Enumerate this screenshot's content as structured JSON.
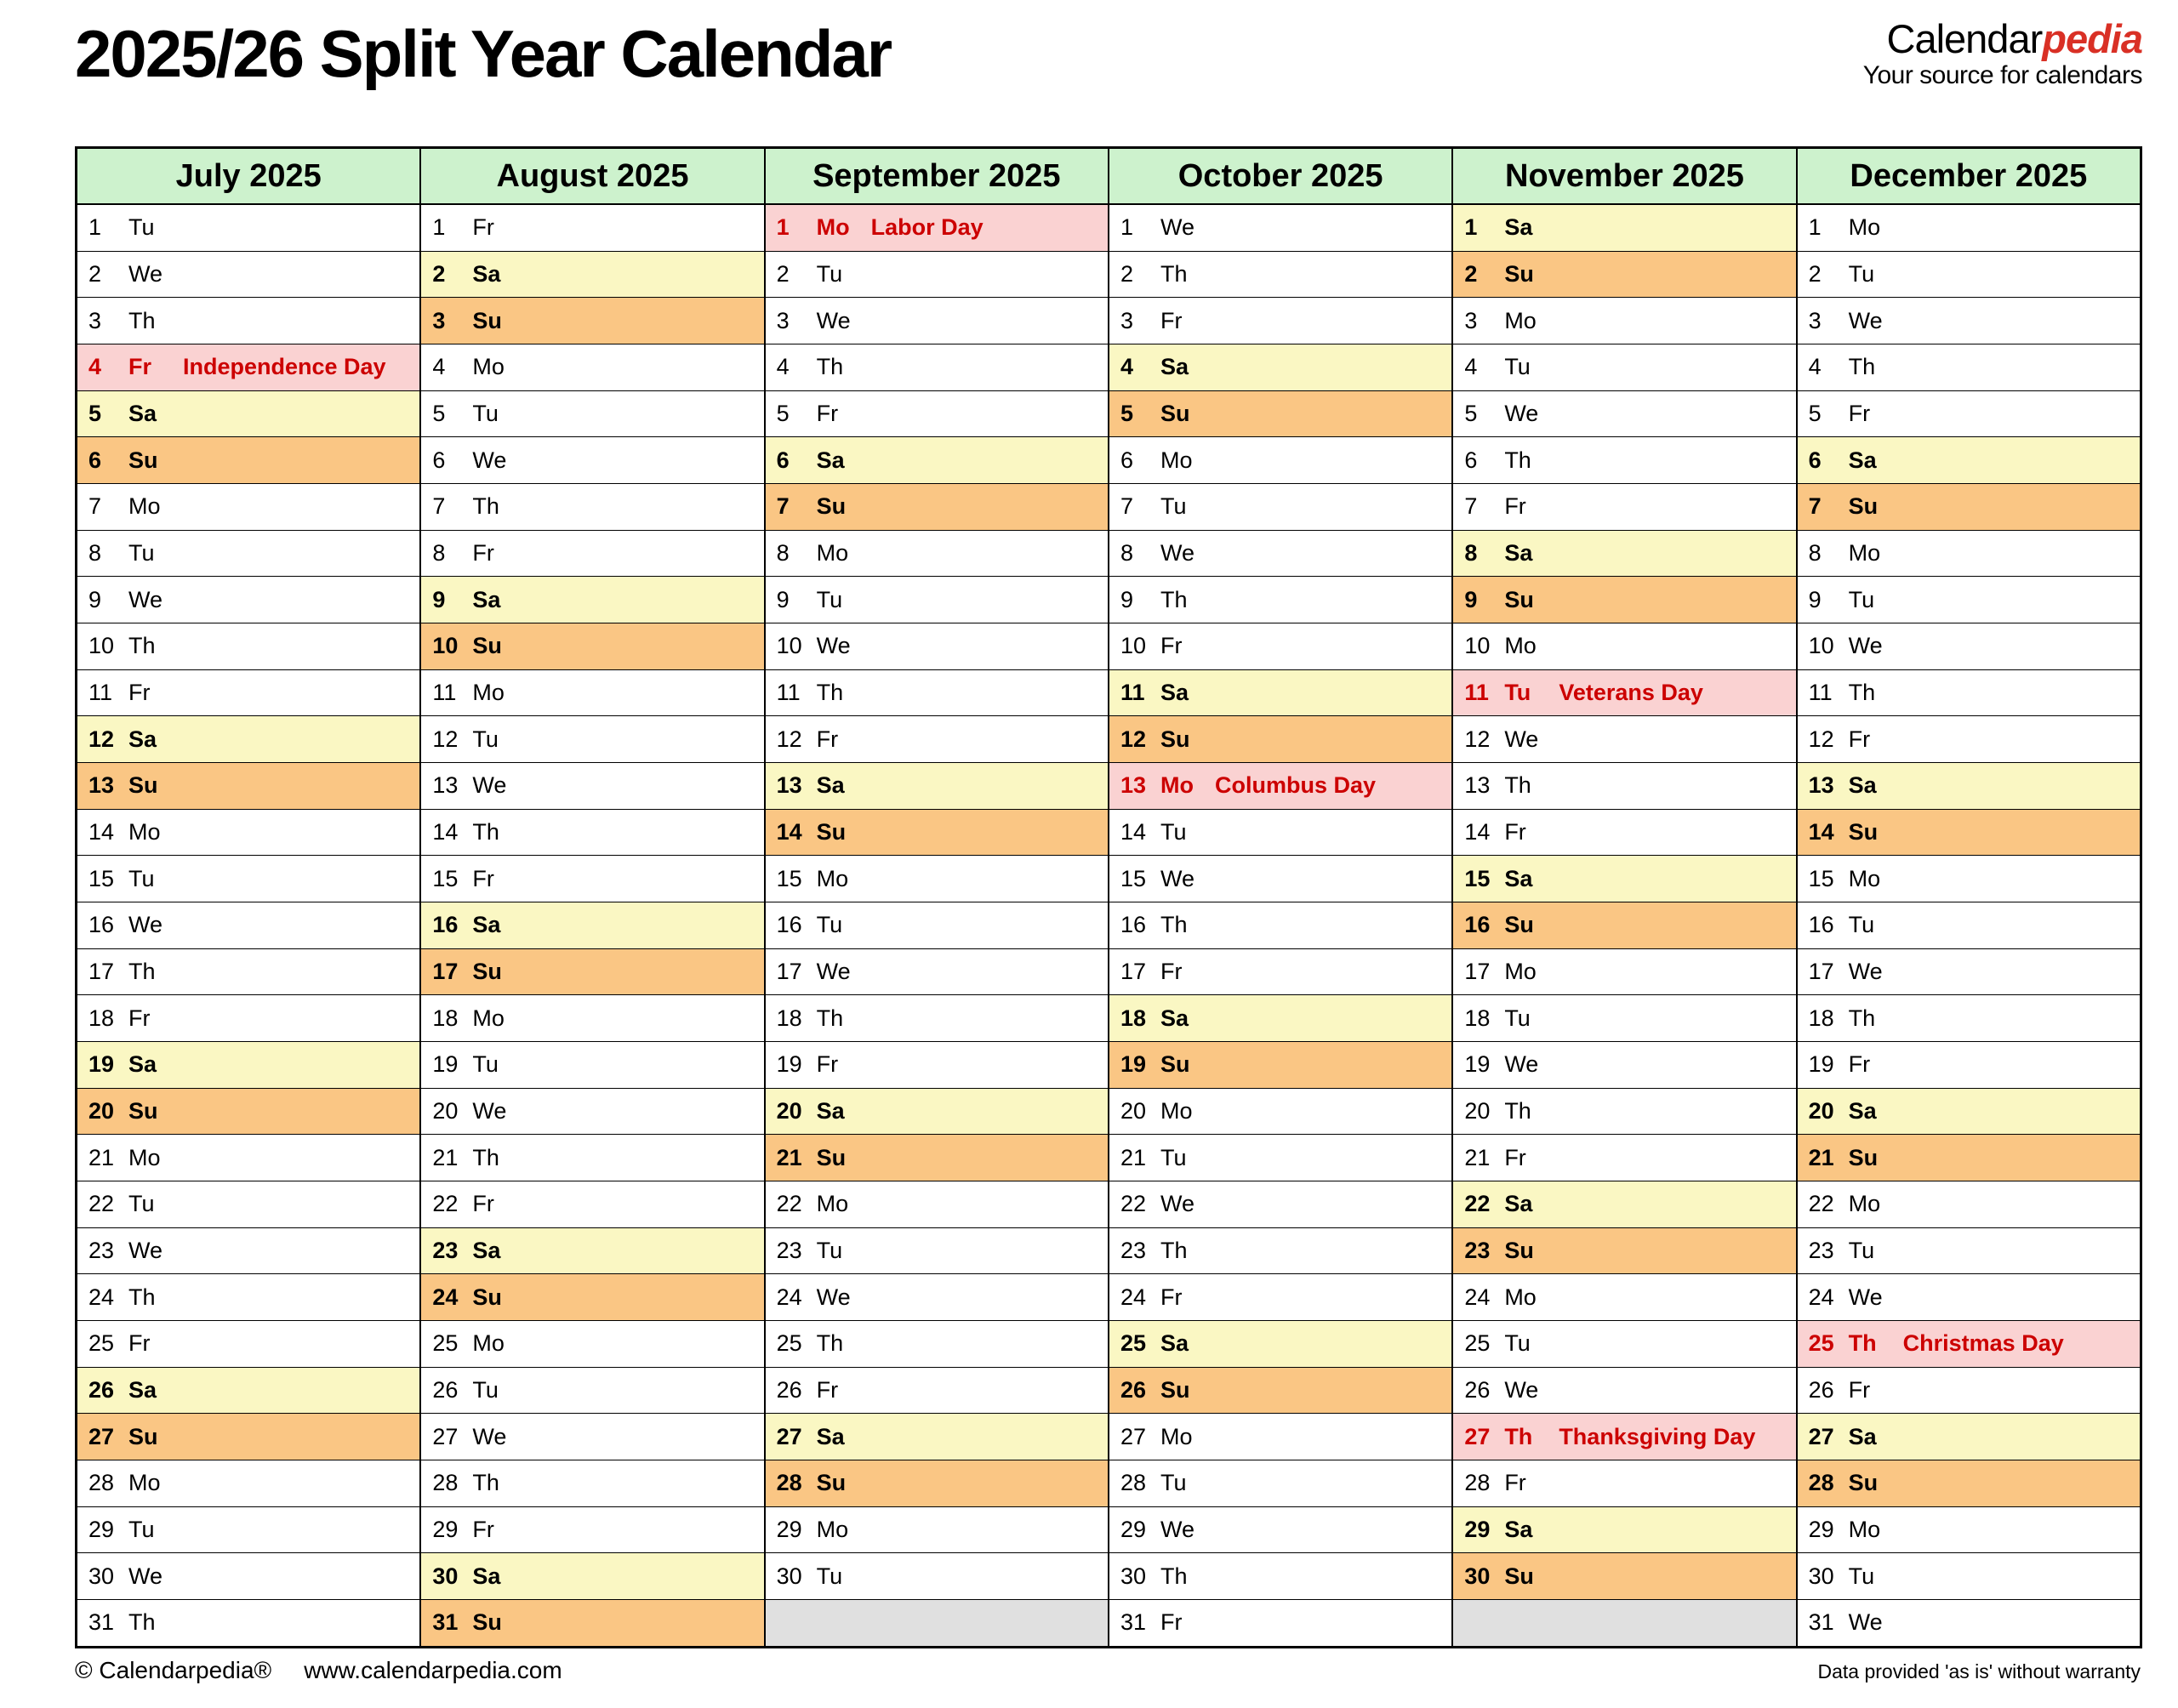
{
  "title": "2025/26 Split Year Calendar",
  "logo": {
    "black": "Calendar",
    "red": "pedia",
    "tagline": "Your source for calendars"
  },
  "footer": {
    "copyright": "© Calendarpedia®",
    "url": "www.calendarpedia.com",
    "disclaimer": "Data provided 'as is' without warranty"
  },
  "colors": {
    "month_header_bg": "#CDF2CD",
    "saturday_bg": "#FAF7C3",
    "sunday_bg": "#FAC684",
    "holiday_bg": "#FAD2D2",
    "holiday_text": "#CC0000",
    "filler_bg": "#E0E0E0",
    "logo_red": "#D93025",
    "border": "#000000"
  },
  "months": [
    {
      "name": "July 2025",
      "days": [
        "Tu",
        "We",
        "Th",
        [
          "Fr",
          "Independence Day"
        ],
        "Sa",
        "Su",
        "Mo",
        "Tu",
        "We",
        "Th",
        "Fr",
        "Sa",
        "Su",
        "Mo",
        "Tu",
        "We",
        "Th",
        "Fr",
        "Sa",
        "Su",
        "Mo",
        "Tu",
        "We",
        "Th",
        "Fr",
        "Sa",
        "Su",
        "Mo",
        "Tu",
        "We",
        "Th"
      ]
    },
    {
      "name": "August 2025",
      "days": [
        "Fr",
        "Sa",
        "Su",
        "Mo",
        "Tu",
        "We",
        "Th",
        "Fr",
        "Sa",
        "Su",
        "Mo",
        "Tu",
        "We",
        "Th",
        "Fr",
        "Sa",
        "Su",
        "Mo",
        "Tu",
        "We",
        "Th",
        "Fr",
        "Sa",
        "Su",
        "Mo",
        "Tu",
        "We",
        "Th",
        "Fr",
        "Sa",
        "Su"
      ]
    },
    {
      "name": "September 2025",
      "days": [
        [
          "Mo",
          "Labor Day"
        ],
        "Tu",
        "We",
        "Th",
        "Fr",
        "Sa",
        "Su",
        "Mo",
        "Tu",
        "We",
        "Th",
        "Fr",
        "Sa",
        "Su",
        "Mo",
        "Tu",
        "We",
        "Th",
        "Fr",
        "Sa",
        "Su",
        "Mo",
        "Tu",
        "We",
        "Th",
        "Fr",
        "Sa",
        "Su",
        "Mo",
        "Tu"
      ]
    },
    {
      "name": "October 2025",
      "days": [
        "We",
        "Th",
        "Fr",
        "Sa",
        "Su",
        "Mo",
        "Tu",
        "We",
        "Th",
        "Fr",
        "Sa",
        "Su",
        [
          "Mo",
          "Columbus Day"
        ],
        "Tu",
        "We",
        "Th",
        "Fr",
        "Sa",
        "Su",
        "Mo",
        "Tu",
        "We",
        "Th",
        "Fr",
        "Sa",
        "Su",
        "Mo",
        "Tu",
        "We",
        "Th",
        "Fr"
      ]
    },
    {
      "name": "November 2025",
      "days": [
        "Sa",
        "Su",
        "Mo",
        "Tu",
        "We",
        "Th",
        "Fr",
        "Sa",
        "Su",
        "Mo",
        [
          "Tu",
          "Veterans Day"
        ],
        "We",
        "Th",
        "Fr",
        "Sa",
        "Su",
        "Mo",
        "Tu",
        "We",
        "Th",
        "Fr",
        "Sa",
        "Su",
        "Mo",
        "Tu",
        "We",
        [
          "Th",
          "Thanksgiving Day"
        ],
        "Fr",
        "Sa",
        "Su"
      ]
    },
    {
      "name": "December 2025",
      "days": [
        "Mo",
        "Tu",
        "We",
        "Th",
        "Fr",
        "Sa",
        "Su",
        "Mo",
        "Tu",
        "We",
        "Th",
        "Fr",
        "Sa",
        "Su",
        "Mo",
        "Tu",
        "We",
        "Th",
        "Fr",
        "Sa",
        "Su",
        "Mo",
        "Tu",
        "We",
        [
          "Th",
          "Christmas Day"
        ],
        "Fr",
        "Sa",
        "Su",
        "Mo",
        "Tu",
        "We"
      ]
    }
  ]
}
